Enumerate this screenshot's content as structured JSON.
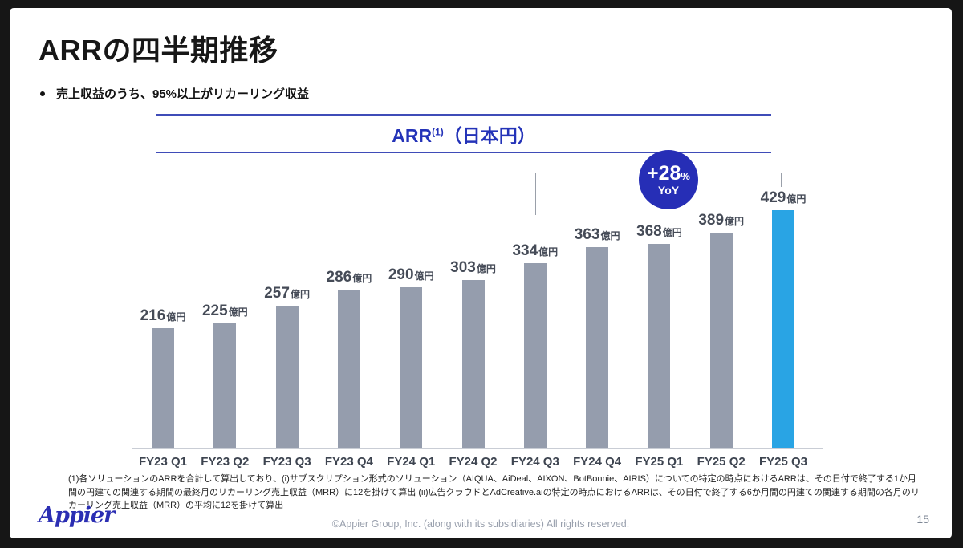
{
  "slide": {
    "title": "ARRの四半期推移",
    "bullet": "売上収益のうち、95%以上がリカーリング収益",
    "page_number": "15",
    "copyright": "©Appier Group, Inc. (along with its subsidiaries) All rights reserved.",
    "logo_text": "Appier"
  },
  "chart_header": {
    "title_main": "ARR",
    "title_sup": "(1)",
    "title_suffix": "（日本円）"
  },
  "yoy_badge": {
    "value": "+28",
    "percent": "%",
    "label": "YoY"
  },
  "footnote": "(1)各ソリューションのARRを合計して算出しており、(i)サブスクリプション形式のソリューション（AIQUA、AiDeal、AIXON、BotBonnie、AIRIS）についての特定の時点におけるARRは、その日付で終了する1か月間の円建ての関連する期間の最終月のリカーリング売上収益（MRR）に12を掛けて算出 (ii)広告クラウドとAdCreative.aiの特定の時点におけるARRは、その日付で終了する6か月間の円建ての関連する期間の各月のリカーリング売上収益（MRR）の平均に12を掛けて算出",
  "chart_data": {
    "type": "bar",
    "title": "ARR(1)（日本円）",
    "categories": [
      "FY23 Q1",
      "FY23 Q2",
      "FY23 Q3",
      "FY23 Q4",
      "FY24 Q1",
      "FY24 Q2",
      "FY24 Q3",
      "FY24 Q4",
      "FY25 Q1",
      "FY25 Q2",
      "FY25 Q3"
    ],
    "values": [
      216,
      225,
      257,
      286,
      290,
      303,
      334,
      363,
      368,
      389,
      429
    ],
    "unit": "億円",
    "ylim": [
      0,
      450
    ],
    "grid": false,
    "bar_color": "#959dad",
    "highlight_index": 10,
    "highlight_color": "#29a4e4",
    "annotation": {
      "text": "+28% YoY",
      "from_category": "FY24 Q3",
      "to_category": "FY25 Q3"
    }
  },
  "colors": {
    "accent_blue": "#2433b8",
    "badge_blue": "#262eb6",
    "bar_gray": "#959dad",
    "bar_highlight": "#29a4e4",
    "frame_black": "#161616"
  }
}
